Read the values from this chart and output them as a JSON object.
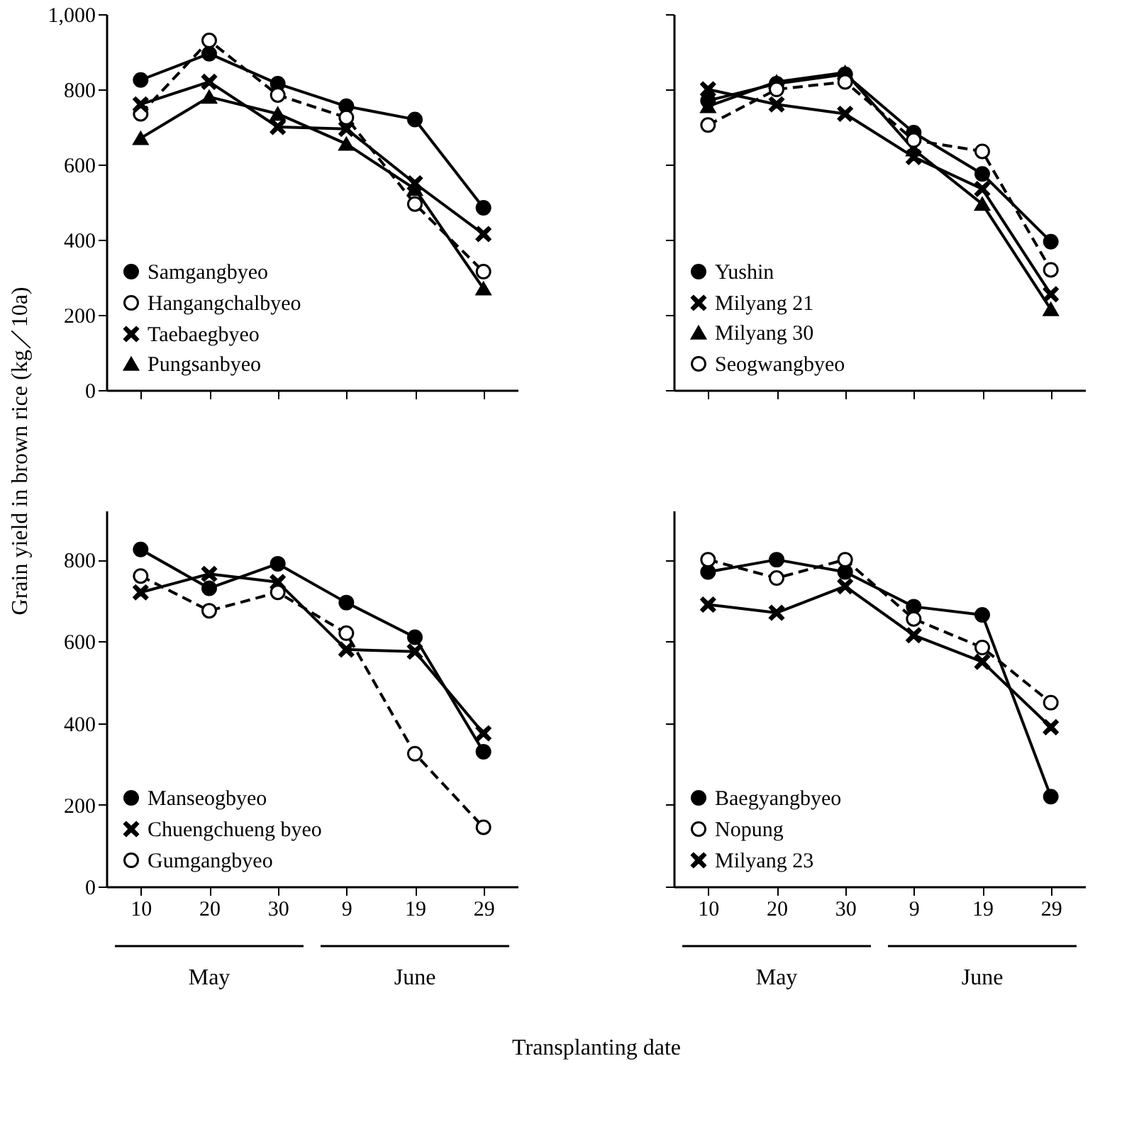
{
  "chart_data": [
    {
      "type": "line",
      "ylabel": "Grain yield in brown rice (kg／10a)",
      "categories": [
        "10",
        "20",
        "30",
        "9",
        "19",
        "29"
      ],
      "ylim": [
        0,
        1000
      ],
      "yticks": [
        0,
        200,
        400,
        600,
        800,
        {
          "value": 1000,
          "label": "1,000"
        }
      ],
      "tick_labels": "y",
      "grid": false,
      "legend": "bottom left",
      "series": [
        {
          "name": "Samgangbyeo",
          "color": "#000000",
          "marker": "circle",
          "line_style": "solid",
          "values": [
            825,
            895,
            815,
            755,
            720,
            485
          ]
        },
        {
          "name": "Hangangchalbyeo",
          "color": "#000000",
          "marker": "circle",
          "line_style": "dashed",
          "values": [
            735,
            930,
            785,
            725,
            495,
            315
          ]
        },
        {
          "name": "Taebaegbyeo",
          "color": "#000000",
          "marker": "cross",
          "line_style": "solid",
          "values": [
            760,
            820,
            700,
            695,
            550,
            415
          ]
        },
        {
          "name": "Pungsanbyeo",
          "color": "#000000",
          "marker": "triangle",
          "line_style": "solid",
          "values": [
            670,
            780,
            735,
            655,
            535,
            270
          ]
        }
      ]
    },
    {
      "type": "line",
      "categories": [
        "10",
        "20",
        "30",
        "9",
        "19",
        "29"
      ],
      "ylim": [
        0,
        1000
      ],
      "yticks": [
        0,
        200,
        400,
        600,
        800,
        1000
      ],
      "tick_labels": false,
      "grid": false,
      "legend": "bottom left",
      "series": [
        {
          "name": "Yushin",
          "color": "#000000",
          "marker": "circle",
          "line_style": "solid",
          "values": [
            770,
            815,
            840,
            685,
            575,
            395
          ]
        },
        {
          "name": "Milyang 21",
          "color": "#000000",
          "marker": "cross",
          "line_style": "solid",
          "values": [
            800,
            760,
            735,
            620,
            535,
            255
          ]
        },
        {
          "name": "Milyang 30",
          "color": "#000000",
          "marker": "triangle",
          "line_style": "solid",
          "values": [
            755,
            820,
            845,
            640,
            495,
            215
          ]
        },
        {
          "name": "Seogwangbyeo",
          "color": "#000000",
          "marker": "circle",
          "line_style": "dashed",
          "values": [
            705,
            800,
            820,
            665,
            635,
            320
          ]
        }
      ]
    },
    {
      "type": "line",
      "xlabel": "Transplanting date",
      "categories": [
        "10",
        "20",
        "30",
        "9",
        "19",
        "29"
      ],
      "ylim": [
        0,
        920
      ],
      "yticks": [
        0,
        200,
        400,
        600,
        800
      ],
      "grid": false,
      "legend": "bottom left",
      "annotations": [
        "May",
        "June"
      ],
      "series": [
        {
          "name": "Manseogbyeo",
          "color": "#000000",
          "marker": "circle",
          "line_style": "solid",
          "values": [
            825,
            730,
            790,
            695,
            610,
            330
          ]
        },
        {
          "name": "Chuengchueng byeo",
          "color": "#000000",
          "marker": "cross",
          "line_style": "solid",
          "values": [
            720,
            765,
            745,
            580,
            575,
            375
          ]
        },
        {
          "name": "Gumgangbyeo",
          "color": "#000000",
          "marker": "circle",
          "line_style": "dashed",
          "values": [
            760,
            675,
            720,
            620,
            325,
            145
          ]
        }
      ]
    },
    {
      "type": "line",
      "categories": [
        "10",
        "20",
        "30",
        "9",
        "19",
        "29"
      ],
      "ylim": [
        0,
        920
      ],
      "yticks": [
        0,
        200,
        400,
        600,
        800
      ],
      "tick_labels": "x",
      "grid": false,
      "legend": "bottom left",
      "annotations": [
        "May",
        "June"
      ],
      "series": [
        {
          "name": "Baegyangbyeo",
          "color": "#000000",
          "marker": "circle",
          "line_style": "solid",
          "values": [
            770,
            800,
            770,
            685,
            665,
            220
          ]
        },
        {
          "name": "Nopung",
          "color": "#000000",
          "marker": "circle",
          "line_style": "dashed",
          "values": [
            800,
            755,
            800,
            655,
            585,
            450
          ]
        },
        {
          "name": "Milyang 23",
          "color": "#000000",
          "marker": "cross",
          "line_style": "solid",
          "values": [
            690,
            670,
            735,
            615,
            550,
            390
          ]
        }
      ]
    }
  ]
}
